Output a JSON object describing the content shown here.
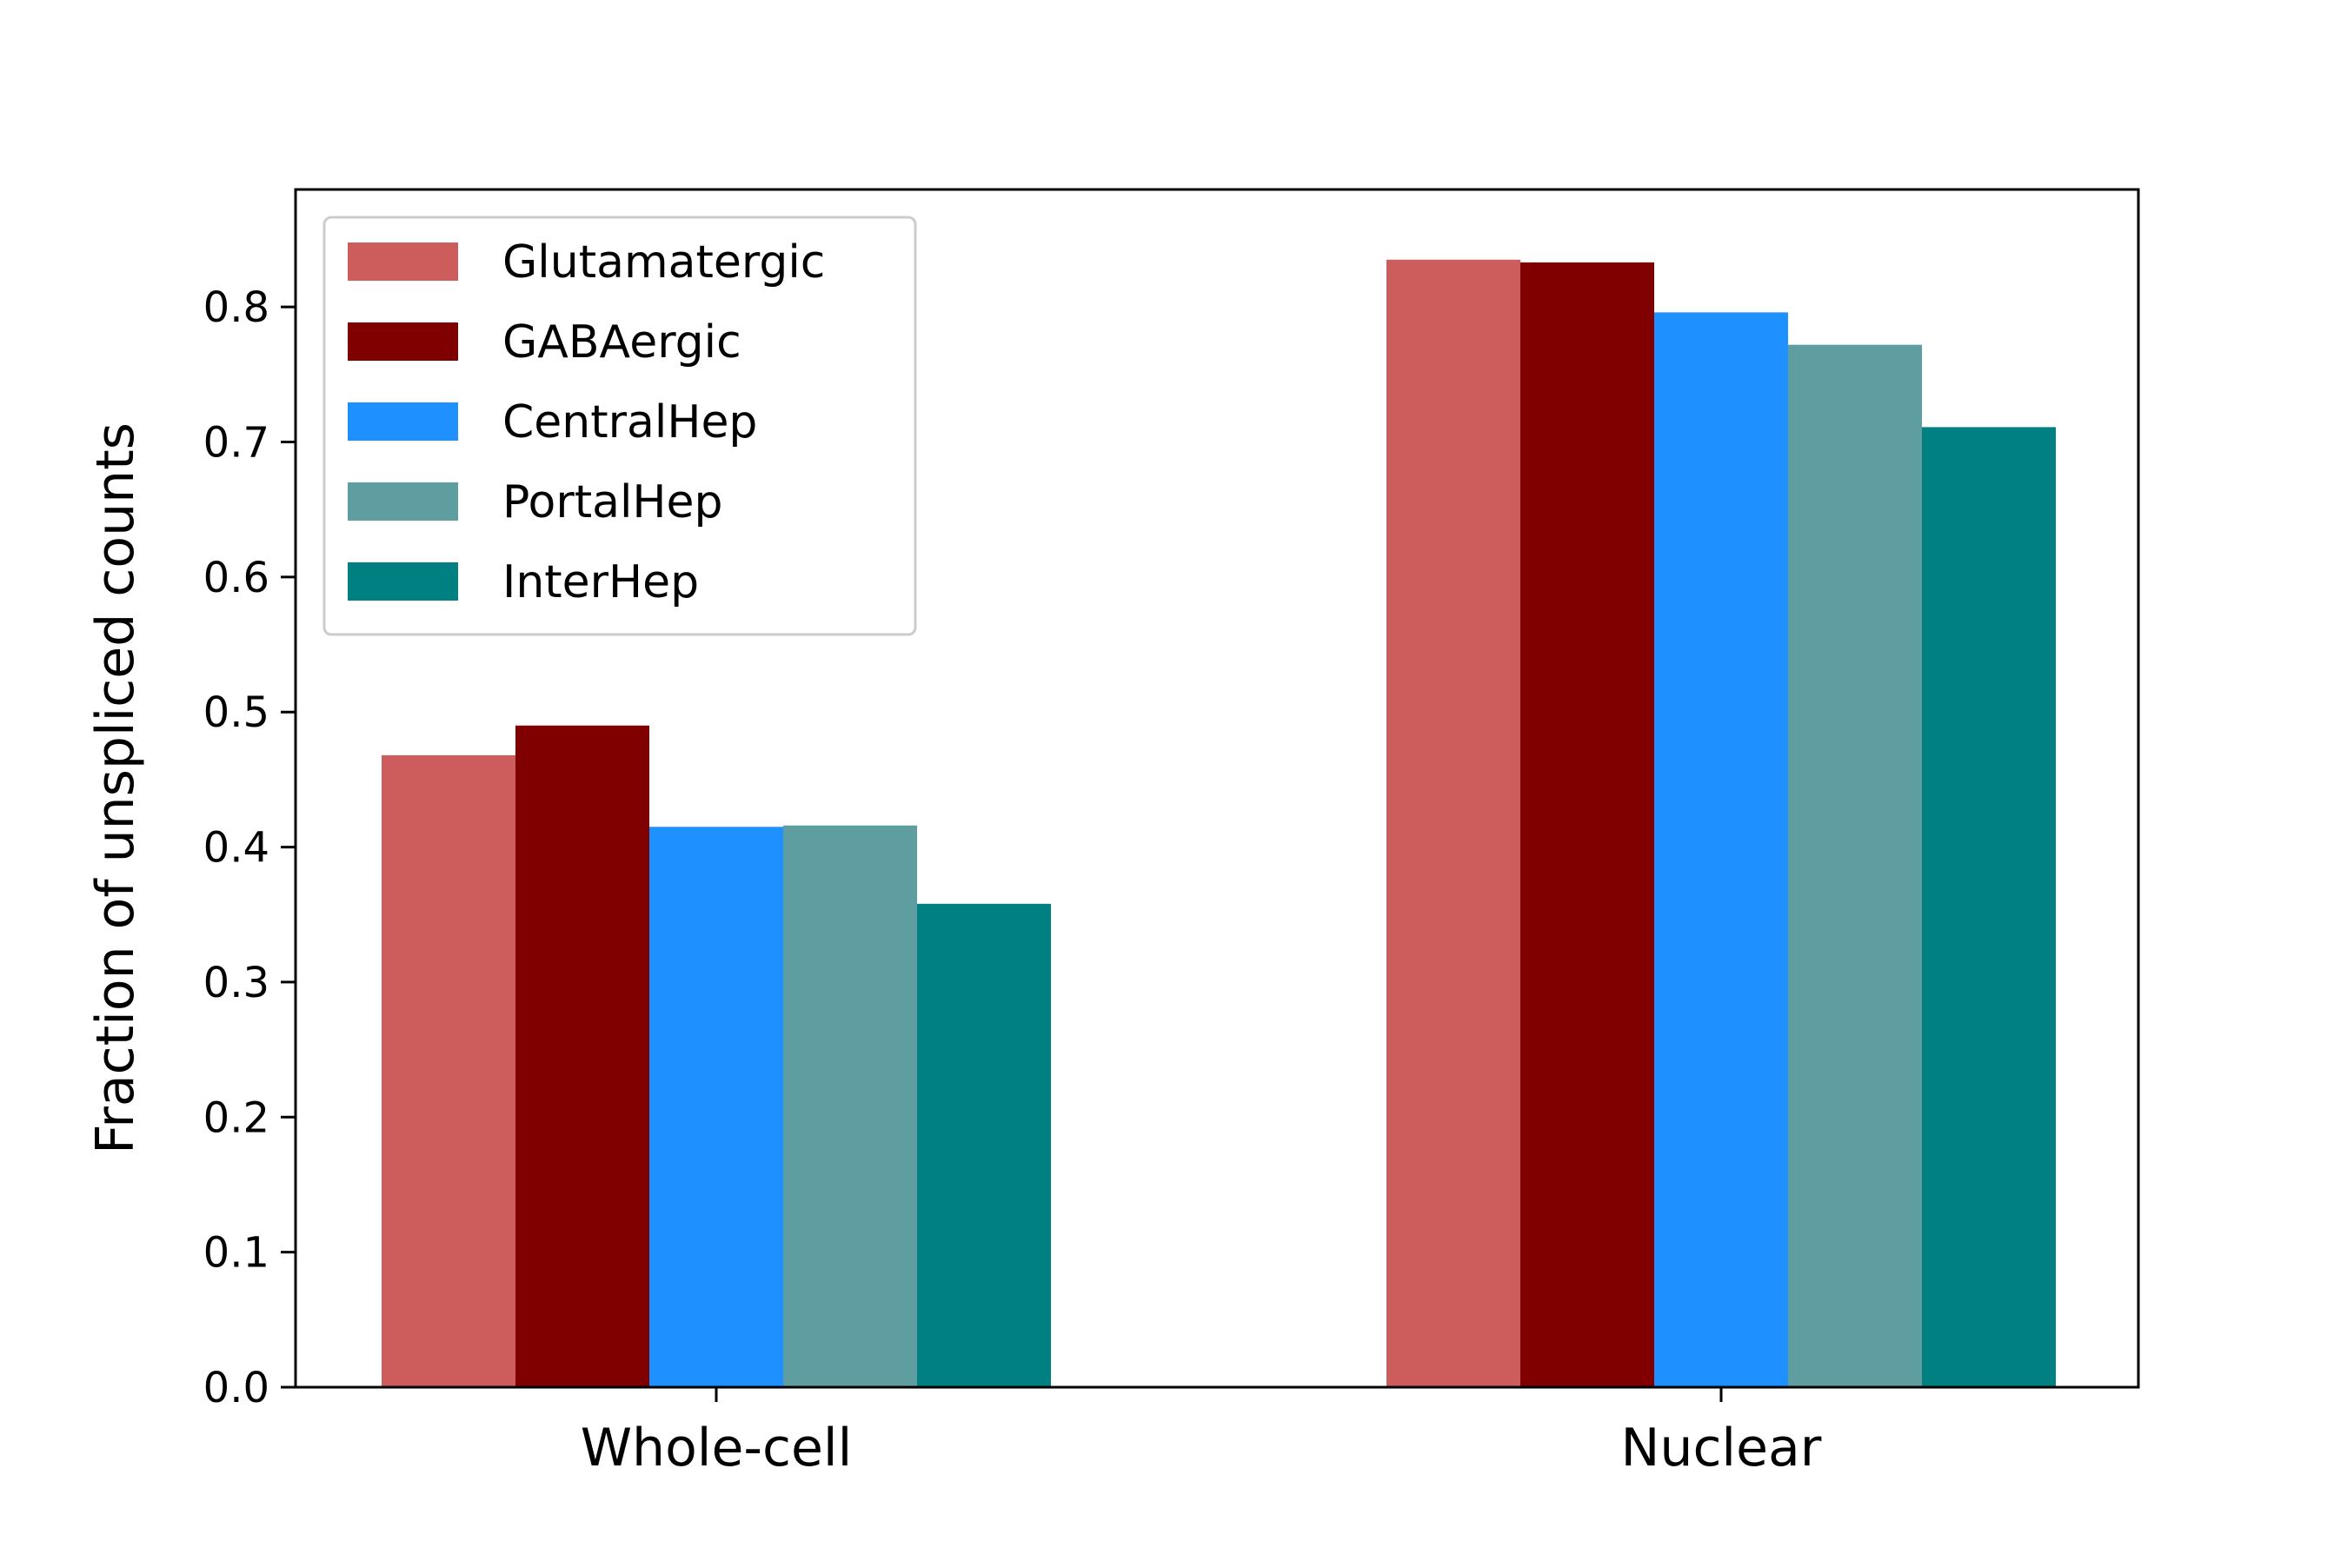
{
  "chart_data": {
    "type": "bar",
    "title": "",
    "xlabel": "",
    "ylabel": "Fraction of unspliced counts",
    "categories": [
      "Whole-cell",
      "Nuclear"
    ],
    "series": [
      {
        "name": "Glutamatergic",
        "color": "#cd5c5c",
        "values": [
          0.468,
          0.835
        ]
      },
      {
        "name": "GABAergic",
        "color": "#800000",
        "values": [
          0.49,
          0.833
        ]
      },
      {
        "name": "CentralHep",
        "color": "#1e90ff",
        "values": [
          0.415,
          0.796
        ]
      },
      {
        "name": "PortalHep",
        "color": "#5f9ea0",
        "values": [
          0.416,
          0.772
        ]
      },
      {
        "name": "InterHep",
        "color": "#008080",
        "values": [
          0.358,
          0.711
        ]
      }
    ],
    "ylim": [
      0,
      0.887
    ],
    "yticks": [
      0.0,
      0.1,
      0.2,
      0.3,
      0.4,
      0.5,
      0.6,
      0.7,
      0.8
    ],
    "ytick_labels": [
      "0.0",
      "0.1",
      "0.2",
      "0.3",
      "0.4",
      "0.5",
      "0.6",
      "0.7",
      "0.8"
    ],
    "grid": false,
    "legend_position": "top-left"
  }
}
